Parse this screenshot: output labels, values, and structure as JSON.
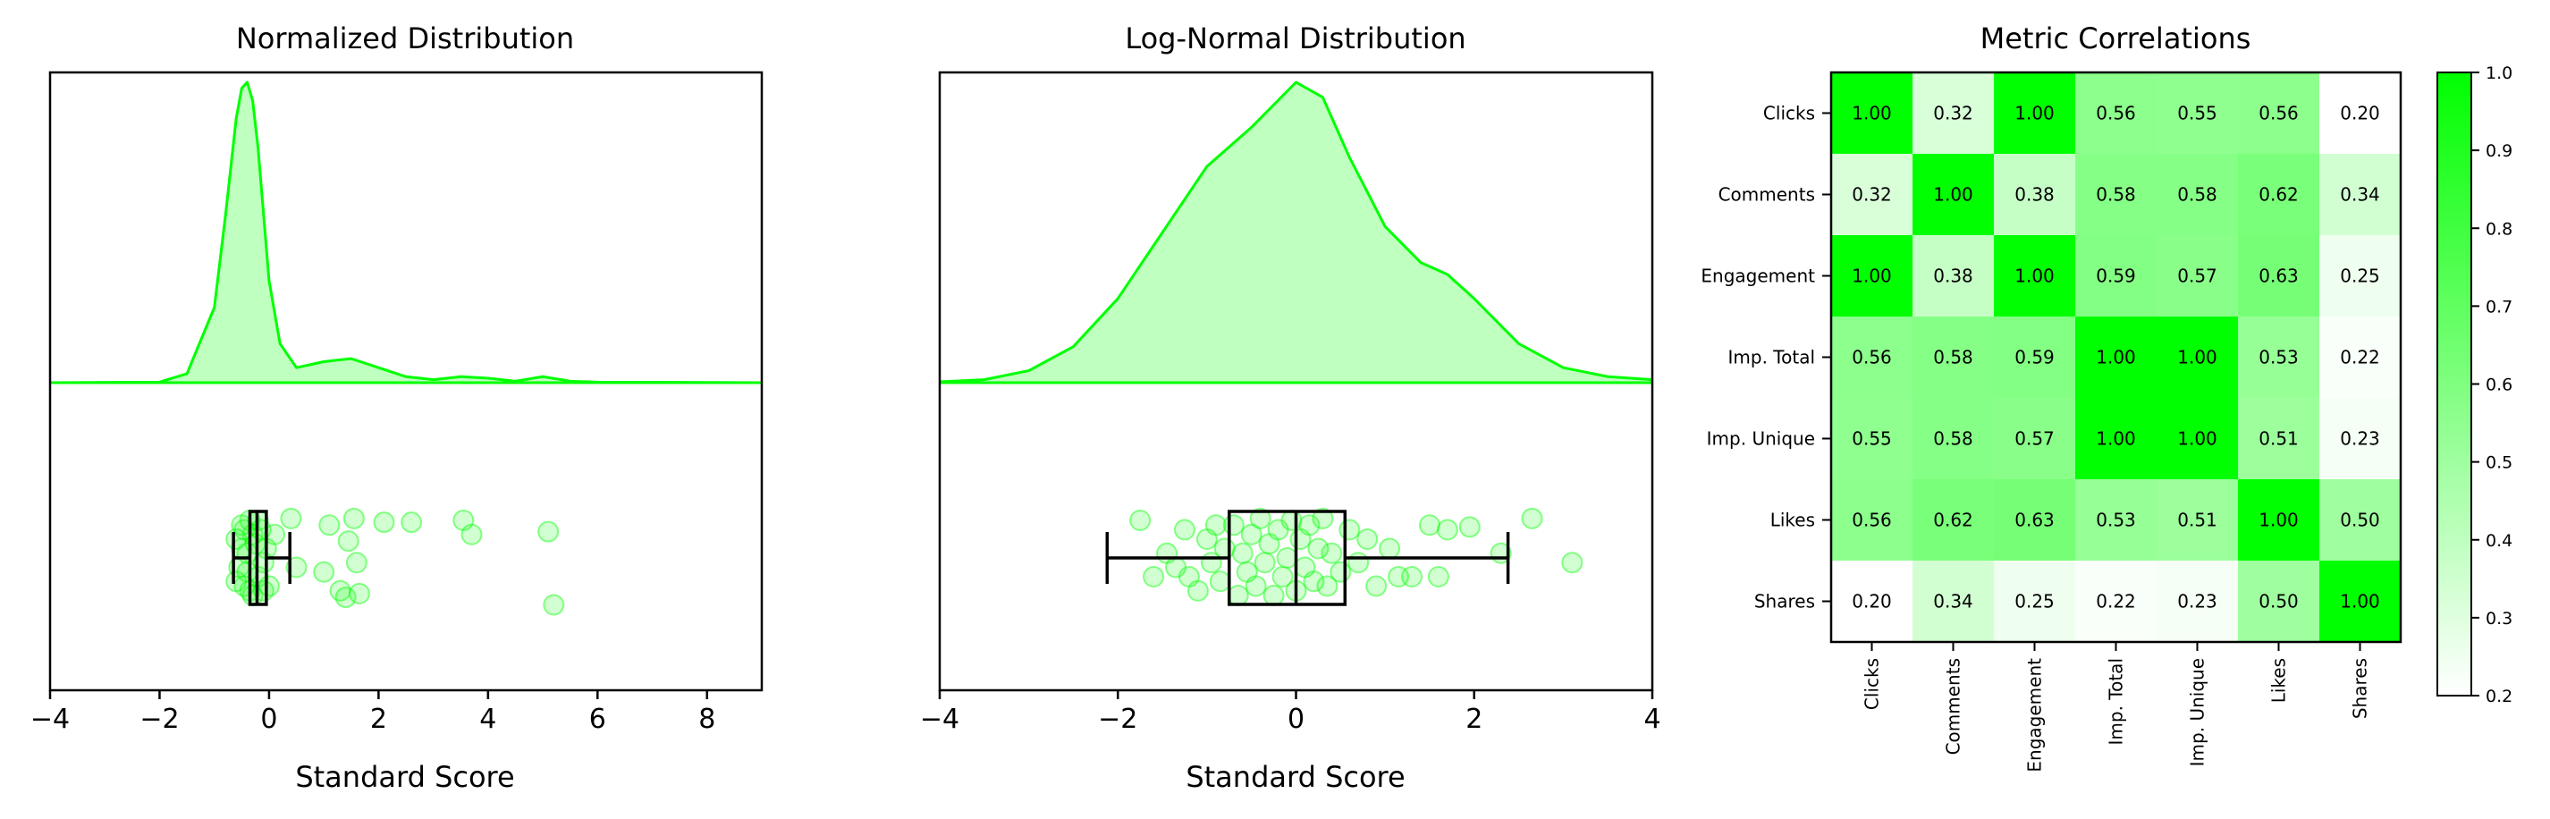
{
  "colors": {
    "accent": "#00ff00",
    "fill": "#bfffbf",
    "box": "#000000",
    "heat_low": "#ffffff",
    "heat_high": "#00ff00"
  },
  "chart_data": [
    {
      "type": "density+box+strip",
      "title": "Normalized Distribution",
      "xlabel": "Standard Score",
      "xlim": [
        -4,
        9
      ],
      "xticks": [
        -4,
        -2,
        0,
        2,
        4,
        6,
        8
      ],
      "xtick_labels": [
        "−4",
        "−2",
        "0",
        "2",
        "4",
        "6",
        "8"
      ],
      "density": {
        "x": [
          -4,
          -2,
          -1.5,
          -1.0,
          -0.8,
          -0.6,
          -0.5,
          -0.4,
          -0.3,
          -0.2,
          -0.1,
          0.0,
          0.2,
          0.5,
          1.0,
          1.5,
          2.0,
          2.5,
          3.0,
          3.5,
          4.0,
          4.5,
          5.0,
          5.5,
          6.0,
          9.0
        ],
        "y": [
          0,
          0.002,
          0.03,
          0.25,
          0.55,
          0.88,
          0.98,
          1.0,
          0.94,
          0.78,
          0.56,
          0.34,
          0.13,
          0.05,
          0.07,
          0.08,
          0.05,
          0.02,
          0.01,
          0.02,
          0.015,
          0.005,
          0.02,
          0.005,
          0.002,
          0
        ]
      },
      "box": {
        "whisker_low": -0.65,
        "q1": -0.35,
        "median": -0.22,
        "q3": -0.05,
        "whisker_high": 0.38
      },
      "points": [
        {
          "x": -0.6,
          "y": 0.2
        },
        {
          "x": -0.55,
          "y": -0.1
        },
        {
          "x": -0.5,
          "y": 0.35
        },
        {
          "x": -0.45,
          "y": -0.3
        },
        {
          "x": -0.4,
          "y": 0.05
        },
        {
          "x": -0.35,
          "y": 0.4
        },
        {
          "x": -0.3,
          "y": -0.4
        },
        {
          "x": -0.25,
          "y": 0.15
        },
        {
          "x": -0.2,
          "y": -0.2
        },
        {
          "x": -0.15,
          "y": 0.3
        },
        {
          "x": -0.1,
          "y": -0.35
        },
        {
          "x": -0.05,
          "y": 0.1
        },
        {
          "x": -0.6,
          "y": -0.25
        },
        {
          "x": -0.5,
          "y": 0.1
        },
        {
          "x": -0.4,
          "y": -0.15
        },
        {
          "x": -0.3,
          "y": 0.25
        },
        {
          "x": -0.2,
          "y": 0.4
        },
        {
          "x": -0.1,
          "y": -0.05
        },
        {
          "x": -0.45,
          "y": 0.3
        },
        {
          "x": -0.35,
          "y": -0.35
        },
        {
          "x": 0.0,
          "y": -0.3
        },
        {
          "x": 0.1,
          "y": 0.25
        },
        {
          "x": 0.4,
          "y": 0.42
        },
        {
          "x": 0.5,
          "y": -0.1
        },
        {
          "x": 1.0,
          "y": -0.15
        },
        {
          "x": 1.1,
          "y": 0.35
        },
        {
          "x": 1.3,
          "y": -0.35
        },
        {
          "x": 1.4,
          "y": -0.42
        },
        {
          "x": 1.45,
          "y": 0.18
        },
        {
          "x": 1.55,
          "y": 0.42
        },
        {
          "x": 1.6,
          "y": -0.05
        },
        {
          "x": 1.65,
          "y": -0.38
        },
        {
          "x": 2.1,
          "y": 0.38
        },
        {
          "x": 2.6,
          "y": 0.38
        },
        {
          "x": 3.55,
          "y": 0.4
        },
        {
          "x": 3.7,
          "y": 0.25
        },
        {
          "x": 5.1,
          "y": 0.28
        },
        {
          "x": 5.2,
          "y": -0.5
        }
      ]
    },
    {
      "type": "density+box+strip",
      "title": "Log-Normal Distribution",
      "xlabel": "Standard Score",
      "xlim": [
        -4,
        4
      ],
      "xticks": [
        -4,
        -2,
        0,
        2,
        4
      ],
      "xtick_labels": [
        "−4",
        "−2",
        "0",
        "2",
        "4"
      ],
      "density": {
        "x": [
          -4,
          -3.5,
          -3.0,
          -2.5,
          -2.0,
          -1.5,
          -1.0,
          -0.5,
          0.0,
          0.3,
          0.6,
          1.0,
          1.4,
          1.7,
          2.0,
          2.5,
          3.0,
          3.5,
          4.0
        ],
        "y": [
          0.003,
          0.01,
          0.04,
          0.12,
          0.28,
          0.5,
          0.72,
          0.85,
          1.0,
          0.95,
          0.75,
          0.52,
          0.4,
          0.36,
          0.28,
          0.13,
          0.05,
          0.02,
          0.01
        ]
      },
      "box": {
        "whisker_low": -2.12,
        "q1": -0.75,
        "median": 0.0,
        "q3": 0.55,
        "whisker_high": 2.38
      },
      "points": [
        {
          "x": -1.75,
          "y": 0.4
        },
        {
          "x": -1.6,
          "y": -0.2
        },
        {
          "x": -1.45,
          "y": 0.05
        },
        {
          "x": -1.35,
          "y": -0.1
        },
        {
          "x": -1.25,
          "y": 0.3
        },
        {
          "x": -1.2,
          "y": -0.2
        },
        {
          "x": -1.1,
          "y": -0.35
        },
        {
          "x": -1.0,
          "y": 0.2
        },
        {
          "x": -0.95,
          "y": -0.05
        },
        {
          "x": -0.9,
          "y": 0.35
        },
        {
          "x": -0.85,
          "y": -0.25
        },
        {
          "x": -0.8,
          "y": 0.1
        },
        {
          "x": -0.7,
          "y": 0.35
        },
        {
          "x": -0.65,
          "y": -0.4
        },
        {
          "x": -0.6,
          "y": 0.05
        },
        {
          "x": -0.55,
          "y": -0.15
        },
        {
          "x": -0.5,
          "y": 0.25
        },
        {
          "x": -0.45,
          "y": -0.3
        },
        {
          "x": -0.4,
          "y": 0.42
        },
        {
          "x": -0.35,
          "y": -0.05
        },
        {
          "x": -0.3,
          "y": 0.15
        },
        {
          "x": -0.25,
          "y": -0.4
        },
        {
          "x": -0.2,
          "y": 0.3
        },
        {
          "x": -0.15,
          "y": -0.2
        },
        {
          "x": -0.1,
          "y": 0.0
        },
        {
          "x": -0.05,
          "y": 0.4
        },
        {
          "x": 0.0,
          "y": -0.35
        },
        {
          "x": 0.05,
          "y": 0.2
        },
        {
          "x": 0.1,
          "y": -0.1
        },
        {
          "x": 0.15,
          "y": 0.35
        },
        {
          "x": 0.2,
          "y": -0.25
        },
        {
          "x": 0.25,
          "y": 0.1
        },
        {
          "x": 0.3,
          "y": 0.42
        },
        {
          "x": 0.35,
          "y": -0.3
        },
        {
          "x": 0.4,
          "y": 0.05
        },
        {
          "x": 0.5,
          "y": -0.15
        },
        {
          "x": 0.6,
          "y": 0.3
        },
        {
          "x": 0.7,
          "y": -0.05
        },
        {
          "x": 0.8,
          "y": 0.2
        },
        {
          "x": 0.9,
          "y": -0.3
        },
        {
          "x": 1.05,
          "y": 0.1
        },
        {
          "x": 1.15,
          "y": -0.2
        },
        {
          "x": 1.3,
          "y": -0.2
        },
        {
          "x": 1.5,
          "y": 0.35
        },
        {
          "x": 1.6,
          "y": -0.2
        },
        {
          "x": 1.7,
          "y": 0.3
        },
        {
          "x": 1.95,
          "y": 0.33
        },
        {
          "x": 2.3,
          "y": 0.05
        },
        {
          "x": 2.65,
          "y": 0.42
        },
        {
          "x": 3.1,
          "y": -0.05
        }
      ]
    },
    {
      "type": "heatmap",
      "title": "Metric Correlations",
      "labels": [
        "Clicks",
        "Comments",
        "Engagement",
        "Imp. Total",
        "Imp. Unique",
        "Likes",
        "Shares"
      ],
      "values": [
        [
          1.0,
          0.32,
          1.0,
          0.56,
          0.55,
          0.56,
          0.2
        ],
        [
          0.32,
          1.0,
          0.38,
          0.58,
          0.58,
          0.62,
          0.34
        ],
        [
          1.0,
          0.38,
          1.0,
          0.59,
          0.57,
          0.63,
          0.25
        ],
        [
          0.56,
          0.58,
          0.59,
          1.0,
          1.0,
          0.53,
          0.22
        ],
        [
          0.55,
          0.58,
          0.57,
          1.0,
          1.0,
          0.51,
          0.23
        ],
        [
          0.56,
          0.62,
          0.63,
          0.53,
          0.51,
          1.0,
          0.5
        ],
        [
          0.2,
          0.34,
          0.25,
          0.22,
          0.23,
          0.5,
          1.0
        ]
      ],
      "colorbar": {
        "vmin": 0.2,
        "vmax": 1.0,
        "ticks": [
          0.2,
          0.3,
          0.4,
          0.5,
          0.6,
          0.7,
          0.8,
          0.9,
          1.0
        ],
        "tick_labels": [
          "0.2",
          "0.3",
          "0.4",
          "0.5",
          "0.6",
          "0.7",
          "0.8",
          "0.9",
          "1.0"
        ]
      }
    }
  ]
}
